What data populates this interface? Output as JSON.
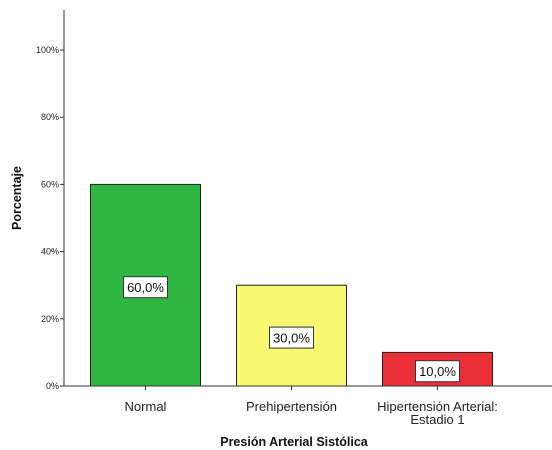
{
  "chart_data": {
    "type": "bar",
    "title": "",
    "xlabel": "Presión Arterial Sistólica",
    "ylabel": "Porcentaje",
    "ylim": [
      0,
      100
    ],
    "yticks": [
      0,
      20,
      40,
      60,
      80,
      100
    ],
    "ytick_labels": [
      "0%",
      "20%",
      "40%",
      "60%",
      "80%",
      "100%"
    ],
    "categories": [
      [
        "Normal"
      ],
      [
        "Prehipertensión"
      ],
      [
        "Hipertensión Arterial:",
        "Estadio 1"
      ]
    ],
    "values": [
      60,
      30,
      10
    ],
    "data_labels": [
      "60,0%",
      "30,0%",
      "10,0%"
    ],
    "colors": [
      "#2fb743",
      "#f9f871",
      "#ec2f37"
    ],
    "grid": false,
    "legend": "none"
  }
}
